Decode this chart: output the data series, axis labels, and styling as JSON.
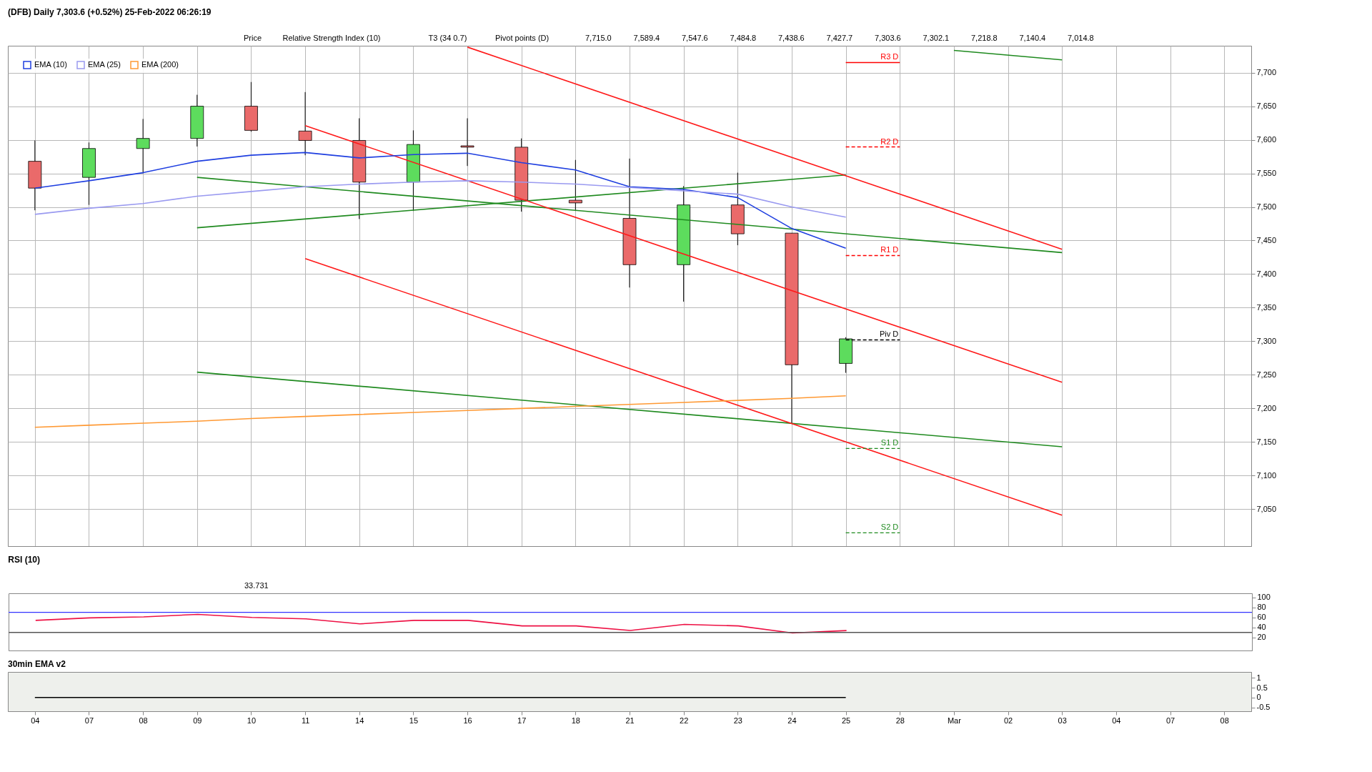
{
  "chart_data": [
    {
      "type": "candlestick",
      "title": "(DFB) Daily 7,303.6 (+0.52%) 25-Feb-2022 06:26:19",
      "categories": [
        "04",
        "07",
        "08",
        "09",
        "10",
        "11",
        "14",
        "15",
        "16",
        "17",
        "18",
        "21",
        "22",
        "23",
        "24",
        "25",
        "28",
        "Mar",
        "02",
        "03",
        "04",
        "07",
        "08"
      ],
      "ohlc": [
        [
          7568,
          7599,
          7495,
          7528
        ],
        [
          7544,
          7596,
          7503,
          7587
        ],
        [
          7587,
          7631,
          7550,
          7602
        ],
        [
          7602,
          7667,
          7590,
          7650
        ],
        [
          7650,
          7686,
          7612,
          7614
        ],
        [
          7613,
          7671,
          7577,
          7599
        ],
        [
          7599,
          7632,
          7482,
          7537
        ],
        [
          7537,
          7614,
          7494,
          7593
        ],
        [
          7591,
          7632,
          7561,
          7589
        ],
        [
          7589,
          7602,
          7493,
          7510
        ],
        [
          7510,
          7570,
          7494,
          7506
        ],
        [
          7483,
          7572,
          7380,
          7414
        ],
        [
          7414,
          7531,
          7359,
          7503
        ],
        [
          7503,
          7551,
          7443,
          7460
        ],
        [
          7461,
          7461,
          7177,
          7265
        ],
        [
          7267,
          7306,
          7253,
          7303.6
        ],
        null,
        null,
        null,
        null,
        null,
        null,
        null
      ],
      "series": [
        {
          "name": "EMA (10)",
          "type": "line",
          "color": "#1f3fe0",
          "values": [
            7528,
            7539,
            7551,
            7568,
            7577,
            7581,
            7573,
            7578,
            7580,
            7566,
            7555,
            7530,
            7526,
            7514,
            7468,
            7438.6,
            null,
            null,
            null,
            null,
            null,
            null,
            null
          ]
        },
        {
          "name": "EMA (25)",
          "type": "line",
          "color": "#9a9af0",
          "values": [
            7489,
            7498,
            7505,
            7516,
            7523,
            7530,
            7534,
            7537,
            7539,
            7537,
            7534,
            7529,
            7524,
            7519,
            7500,
            7484.8,
            null,
            null,
            null,
            null,
            null,
            null,
            null
          ]
        },
        {
          "name": "EMA (200)",
          "type": "line",
          "color": "#ff9933",
          "values": [
            7172,
            7175,
            7178,
            7181,
            7185,
            7188,
            7191,
            7194,
            7197,
            7200,
            7203,
            7206,
            7209,
            7212,
            7215,
            7218.8,
            null,
            null,
            null,
            null,
            null,
            null,
            null
          ]
        },
        {
          "type": "line",
          "color": "#1f8a1f",
          "x": [
            "Mar",
            "03"
          ],
          "values": [
            7733,
            7719
          ]
        },
        {
          "type": "line",
          "color": "#1f8a1f",
          "x": [
            "09",
            "03"
          ],
          "values": [
            7544,
            7432
          ]
        },
        {
          "type": "line",
          "color": "#1f8a1f",
          "x": [
            "09",
            "25"
          ],
          "values": [
            7469,
            7547.6
          ]
        },
        {
          "type": "line",
          "color": "#1f8a1f",
          "x": [
            "09",
            "03"
          ],
          "values": [
            7254,
            7143
          ]
        },
        {
          "type": "line",
          "color": "#ff1a1a",
          "x": [
            "16",
            "03"
          ],
          "values": [
            7738,
            7437
          ]
        },
        {
          "type": "line",
          "color": "#ff1a1a",
          "x": [
            "11",
            "03"
          ],
          "values": [
            7621,
            7239
          ]
        },
        {
          "type": "line",
          "color": "#ff1a1a",
          "x": [
            "11",
            "03"
          ],
          "values": [
            7423,
            7041
          ]
        }
      ],
      "ylim": [
        6995,
        7740
      ],
      "yticks": [
        {
          "value": 7050,
          "label": "7,050"
        },
        {
          "value": 7100,
          "label": "7,100"
        },
        {
          "value": 7150,
          "label": "7,150"
        },
        {
          "value": 7200,
          "label": "7,200"
        },
        {
          "value": 7250,
          "label": "7,250"
        },
        {
          "value": 7300,
          "label": "7,300"
        },
        {
          "value": 7350,
          "label": "7,350"
        },
        {
          "value": 7400,
          "label": "7,400"
        },
        {
          "value": 7450,
          "label": "7,450"
        },
        {
          "value": 7500,
          "label": "7,500"
        },
        {
          "value": 7550,
          "label": "7,550"
        },
        {
          "value": 7600,
          "label": "7,600"
        },
        {
          "value": 7650,
          "label": "7,650"
        },
        {
          "value": 7700,
          "label": "7,700"
        }
      ],
      "ref_lines": [
        {
          "axis": "y",
          "value": 7715,
          "label": "R3 D",
          "color": "#ff0000",
          "line_style": "solid"
        },
        {
          "axis": "y",
          "value": 7589.4,
          "label": "R2 D",
          "color": "#ff0000",
          "line_style": "dashed"
        },
        {
          "axis": "y",
          "value": 7427.7,
          "label": "R1 D",
          "color": "#ff0000",
          "line_style": "dashed"
        },
        {
          "axis": "y",
          "value": 7302.1,
          "label": "Piv D",
          "color": "#000000",
          "line_style": "dashed"
        },
        {
          "axis": "y",
          "value": 7140.4,
          "label": "S1 D",
          "color": "#1f8a1f",
          "line_style": "dashed"
        },
        {
          "axis": "y",
          "value": 7014.8,
          "label": "S2 D",
          "color": "#1f8a1f",
          "line_style": "dashed"
        }
      ],
      "annotations": [
        "Price",
        "Relative Strength Index (10)",
        "T3 (34 0.7)",
        "Pivot points (D)",
        "7,715.0",
        "7,589.4",
        "7,547.6",
        "7,484.8",
        "7,438.6",
        "7,427.7",
        "7,303.6",
        "7,302.1",
        "7,218.8",
        "7,140.4",
        "7,014.8"
      ],
      "grid": true,
      "legend": "top left",
      "tick_labels": "y"
    },
    {
      "type": "line",
      "title": "RSI (10)",
      "categories": [
        "04",
        "07",
        "08",
        "09",
        "10",
        "11",
        "14",
        "15",
        "16",
        "17",
        "18",
        "21",
        "22",
        "23",
        "24",
        "25",
        "28",
        "Mar",
        "02",
        "03",
        "04",
        "07",
        "08"
      ],
      "series": [
        {
          "color": "#ee1144",
          "values": [
            54,
            59,
            61,
            66,
            60,
            57,
            47,
            54,
            54,
            43,
            43,
            34,
            46,
            43,
            29,
            33.731,
            null,
            null,
            null,
            null,
            null,
            null,
            null
          ]
        }
      ],
      "ylim": [
        -6,
        108
      ],
      "yticks": [
        20,
        40,
        60,
        80,
        100
      ],
      "ref_lines": [
        {
          "axis": "y",
          "value": 70,
          "color": "#3333ff"
        },
        {
          "axis": "y",
          "value": 30,
          "color": "#555555"
        }
      ],
      "annotations": [
        "33.731"
      ],
      "tick_labels": "y"
    },
    {
      "type": "line",
      "title": "30min EMA v2",
      "categories": [
        "04",
        "07",
        "08",
        "09",
        "10",
        "11",
        "14",
        "15",
        "16",
        "17",
        "18",
        "21",
        "22",
        "23",
        "24",
        "25",
        "28",
        "Mar",
        "02",
        "03",
        "04",
        "07",
        "08"
      ],
      "series": [
        {
          "color": "#000000",
          "values": [
            0,
            0,
            0,
            0,
            0,
            0,
            0,
            0,
            0,
            0,
            0,
            0,
            0,
            0,
            0,
            0,
            null,
            null,
            null,
            null,
            null,
            null,
            null
          ]
        }
      ],
      "ylim": [
        -0.7,
        1.3
      ],
      "yticks": [
        -0.5,
        0,
        0.5,
        1
      ]
    }
  ]
}
